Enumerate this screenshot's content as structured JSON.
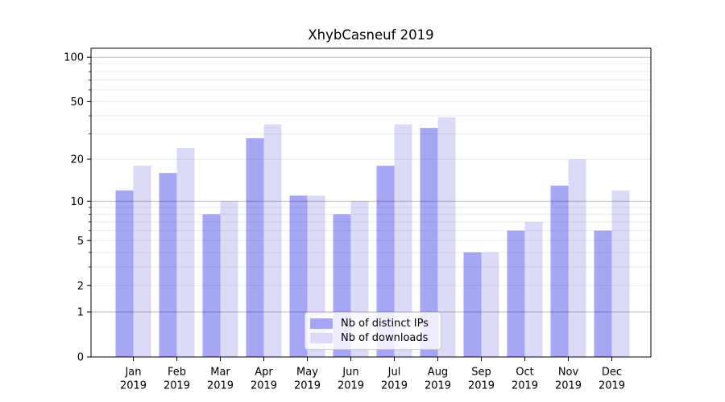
{
  "chart_data": {
    "type": "bar",
    "title": "XhybCasneuf 2019",
    "categories": [
      "Jan",
      "Feb",
      "Mar",
      "Apr",
      "May",
      "Jun",
      "Jul",
      "Aug",
      "Sep",
      "Oct",
      "Nov",
      "Dec"
    ],
    "year_label": "2019",
    "series": [
      {
        "name": "Nb of distinct IPs",
        "color": "#a6a6f4",
        "values": [
          12,
          16,
          8,
          28,
          11,
          8,
          18,
          33,
          4,
          6,
          13,
          6
        ]
      },
      {
        "name": "Nb of downloads",
        "color": "#dbdbf8",
        "values": [
          18,
          24,
          10,
          35,
          11,
          10,
          35,
          39,
          4,
          7,
          20,
          12
        ]
      }
    ],
    "y_axis": {
      "scale": "log1p",
      "labeled_ticks": [
        0,
        1,
        2,
        5,
        10,
        20,
        50,
        100
      ],
      "major_gridlines": [
        1,
        10,
        100
      ],
      "minor_gridlines": [
        2,
        3,
        4,
        5,
        6,
        7,
        8,
        9,
        20,
        30,
        40,
        50,
        60,
        70,
        80,
        90
      ],
      "top_value": 115
    },
    "grid": true,
    "legend_position": "lower-center",
    "colors": {
      "axis": "#000000",
      "major_grid": "rgba(0,0,0,0.25)",
      "minor_grid": "rgba(0,0,0,0.08)",
      "text": "#000000"
    }
  }
}
